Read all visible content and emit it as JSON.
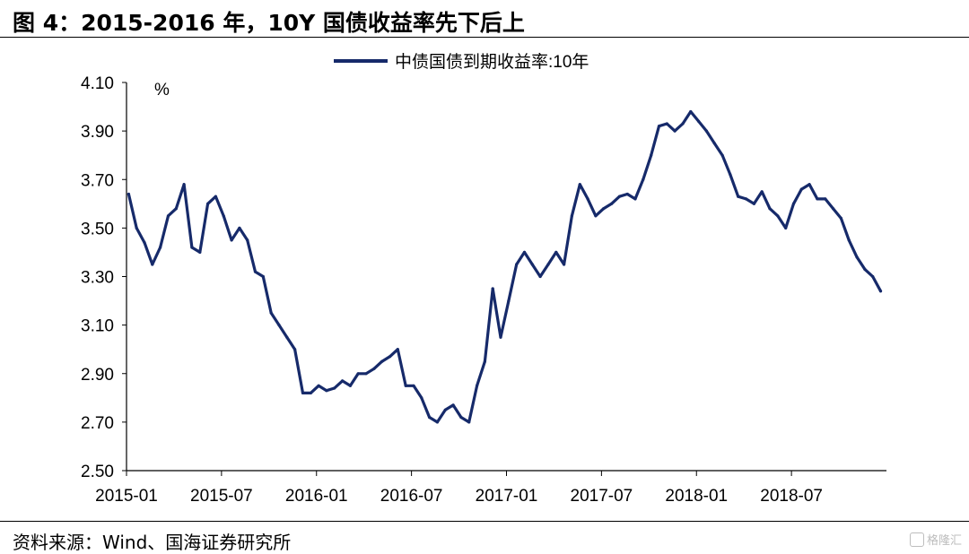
{
  "figure_title": "图 4：2015-2016 年，10Y 国债收益率先下后上",
  "source_text": "资料来源：Wind、国海证券研究所",
  "watermark_text": "格隆汇",
  "colors": {
    "line": "#162a6a",
    "axis": "#000000"
  },
  "chart_data": {
    "type": "line",
    "title": "",
    "xlabel": "",
    "ylabel": "",
    "unit_label": "%",
    "ylim": [
      2.5,
      4.1
    ],
    "y_ticks": [
      "4.10",
      "3.90",
      "3.70",
      "3.50",
      "3.30",
      "3.10",
      "2.90",
      "2.70",
      "2.50"
    ],
    "x_range": [
      "2015-01",
      "2018-12"
    ],
    "x_ticks": [
      "2015-01",
      "2015-07",
      "2016-01",
      "2016-07",
      "2017-01",
      "2017-07",
      "2018-01",
      "2018-07"
    ],
    "legend_position": "top-center",
    "grid": false,
    "series": [
      {
        "name": "中债国债到期收益率:10年",
        "x": [
          "2015-01-05",
          "2015-01-20",
          "2015-02-05",
          "2015-02-20",
          "2015-03-05",
          "2015-03-20",
          "2015-04-05",
          "2015-04-20",
          "2015-05-05",
          "2015-05-20",
          "2015-06-05",
          "2015-06-20",
          "2015-07-05",
          "2015-07-20",
          "2015-08-05",
          "2015-08-20",
          "2015-09-05",
          "2015-09-20",
          "2015-10-05",
          "2015-10-20",
          "2015-11-05",
          "2015-11-20",
          "2015-12-05",
          "2015-12-20",
          "2016-01-05",
          "2016-01-20",
          "2016-02-05",
          "2016-02-20",
          "2016-03-05",
          "2016-03-20",
          "2016-04-05",
          "2016-04-20",
          "2016-05-05",
          "2016-05-20",
          "2016-06-05",
          "2016-06-20",
          "2016-07-05",
          "2016-07-20",
          "2016-08-05",
          "2016-08-20",
          "2016-09-05",
          "2016-09-20",
          "2016-10-05",
          "2016-10-20",
          "2016-11-05",
          "2016-11-20",
          "2016-12-05",
          "2016-12-20",
          "2017-01-05",
          "2017-01-20",
          "2017-02-05",
          "2017-02-20",
          "2017-03-05",
          "2017-03-20",
          "2017-04-05",
          "2017-04-20",
          "2017-05-05",
          "2017-05-20",
          "2017-06-05",
          "2017-06-20",
          "2017-07-05",
          "2017-07-20",
          "2017-08-05",
          "2017-08-20",
          "2017-09-05",
          "2017-09-20",
          "2017-10-05",
          "2017-10-20",
          "2017-11-05",
          "2017-11-20",
          "2017-12-05",
          "2017-12-20",
          "2018-01-05",
          "2018-01-20",
          "2018-02-05",
          "2018-02-20",
          "2018-03-05",
          "2018-03-20",
          "2018-04-05",
          "2018-04-20",
          "2018-05-05",
          "2018-05-20",
          "2018-06-05",
          "2018-06-20",
          "2018-07-05",
          "2018-07-20",
          "2018-08-05",
          "2018-08-20",
          "2018-09-05",
          "2018-09-20",
          "2018-10-05",
          "2018-10-20",
          "2018-11-05",
          "2018-11-20",
          "2018-12-05",
          "2018-12-20"
        ],
        "values": [
          3.64,
          3.5,
          3.44,
          3.35,
          3.42,
          3.55,
          3.58,
          3.68,
          3.42,
          3.4,
          3.6,
          3.63,
          3.55,
          3.45,
          3.5,
          3.45,
          3.32,
          3.3,
          3.15,
          3.1,
          3.05,
          3.0,
          2.82,
          2.82,
          2.85,
          2.83,
          2.84,
          2.87,
          2.85,
          2.9,
          2.9,
          2.92,
          2.95,
          2.97,
          3.0,
          2.85,
          2.85,
          2.8,
          2.72,
          2.7,
          2.75,
          2.77,
          2.72,
          2.7,
          2.85,
          2.95,
          3.25,
          3.05,
          3.2,
          3.35,
          3.4,
          3.35,
          3.3,
          3.35,
          3.4,
          3.35,
          3.55,
          3.68,
          3.62,
          3.55,
          3.58,
          3.6,
          3.63,
          3.64,
          3.62,
          3.7,
          3.8,
          3.92,
          3.93,
          3.9,
          3.93,
          3.98,
          3.94,
          3.9,
          3.85,
          3.8,
          3.72,
          3.63,
          3.62,
          3.6,
          3.65,
          3.58,
          3.55,
          3.5,
          3.6,
          3.66,
          3.68,
          3.62,
          3.62,
          3.58,
          3.54,
          3.45,
          3.38,
          3.33,
          3.3,
          3.24
        ]
      }
    ]
  }
}
